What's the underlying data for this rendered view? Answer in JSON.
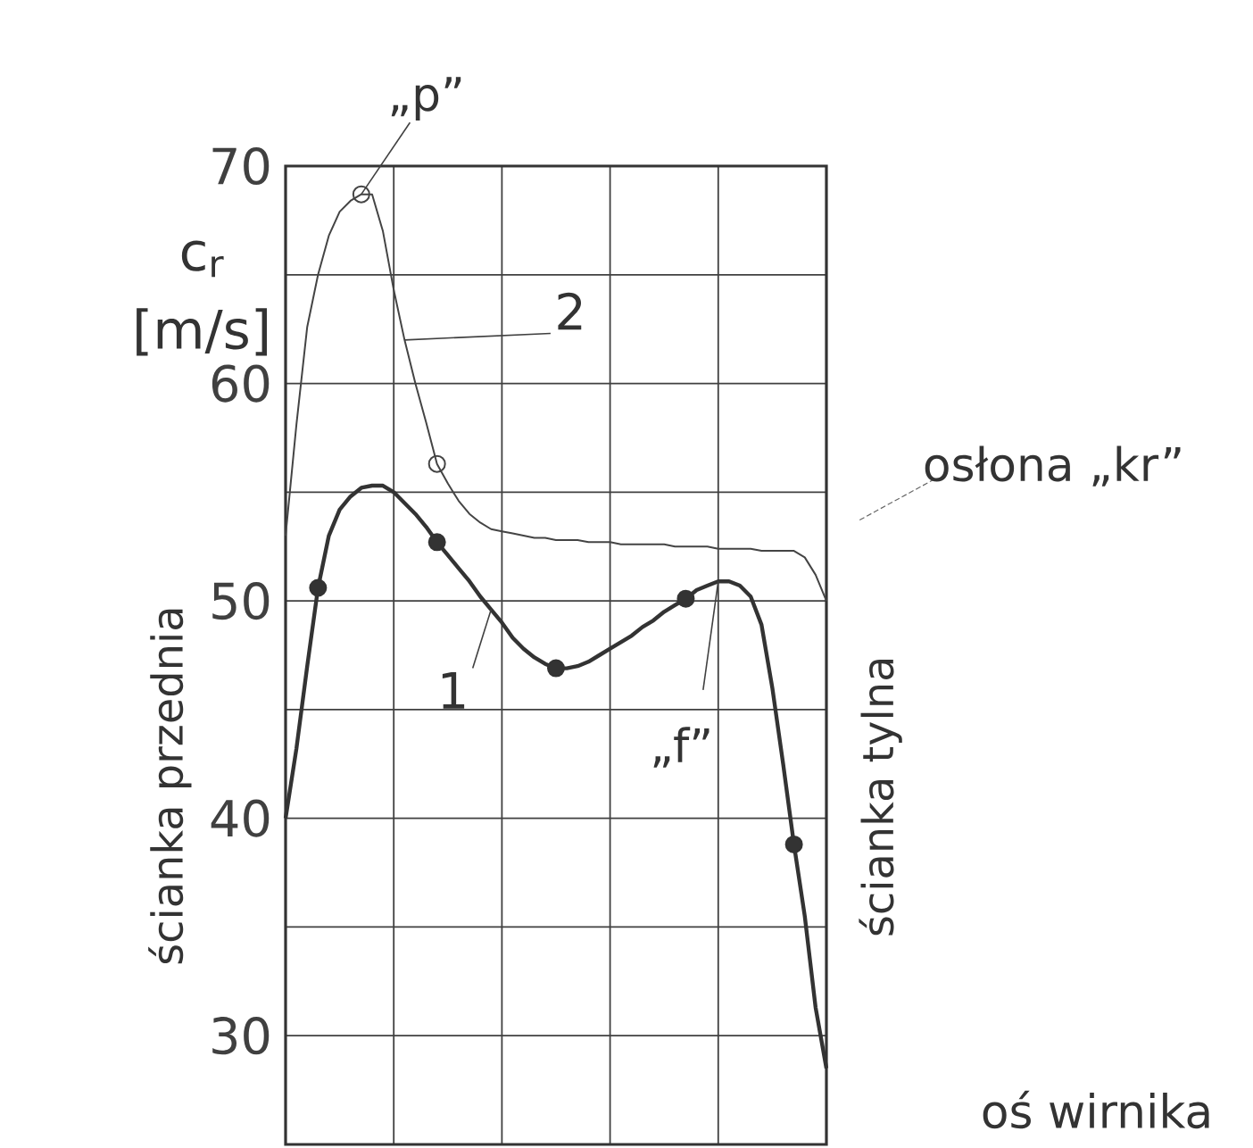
{
  "chart_data": {
    "type": "line",
    "ylabel": "c$_{r}$ [m/s]",
    "categories": [
      null,
      null,
      null,
      null,
      null,
      null,
      null,
      null,
      null,
      null,
      null,
      null,
      null,
      null,
      null,
      null,
      null,
      null,
      null,
      null,
      null,
      null,
      null,
      null,
      null,
      null,
      null,
      null,
      null,
      null,
      null,
      null,
      null,
      null,
      null,
      null,
      null,
      null,
      null,
      null,
      null,
      null,
      null,
      null,
      null,
      null,
      null,
      null,
      null,
      null,
      null
    ],
    "ylim": [
      25,
      70
    ],
    "yticks": [
      30,
      {
        "value": 35,
        "label": null
      },
      40,
      {
        "value": 45,
        "label": null
      },
      50,
      {
        "value": 55,
        "label": null
      },
      60,
      {
        "value": 65,
        "label": null
      },
      70
    ],
    "grid": true,
    "tick_labels": "y",
    "series": [
      {
        "name": "1",
        "color": "#333333",
        "values": [
          40.0,
          43.2,
          47.0,
          50.6,
          53.0,
          54.2,
          54.8,
          55.2,
          55.3,
          55.3,
          55.0,
          54.5,
          54.0,
          53.4,
          52.7,
          52.1,
          51.5,
          50.9,
          50.2,
          49.6,
          49.0,
          48.3,
          47.8,
          47.4,
          47.1,
          46.9,
          46.9,
          47.0,
          47.2,
          47.5,
          47.8,
          48.1,
          48.4,
          48.8,
          49.1,
          49.5,
          49.8,
          50.1,
          50.5,
          50.7,
          50.9,
          50.9,
          50.7,
          50.2,
          48.9,
          46.0,
          42.5,
          38.8,
          35.5,
          31.3,
          28.5
        ]
      },
      {
        "name": "2",
        "color": "#444444",
        "values": [
          53.0,
          58.1,
          62.6,
          65.0,
          66.8,
          67.9,
          68.4,
          68.7,
          68.7,
          67.0,
          64.3,
          62.0,
          60.0,
          58.2,
          56.3,
          55.4,
          54.6,
          54.0,
          53.6,
          53.3,
          53.2,
          53.1,
          53.0,
          52.9,
          52.9,
          52.8,
          52.8,
          52.8,
          52.7,
          52.7,
          52.7,
          52.6,
          52.6,
          52.6,
          52.6,
          52.6,
          52.5,
          52.5,
          52.5,
          52.5,
          52.4,
          52.4,
          52.4,
          52.4,
          52.3,
          52.3,
          52.3,
          52.3,
          52.0,
          51.2,
          50.0
        ]
      },
      {
        "type": "scatter",
        "marker": "circle",
        "color": "#333333",
        "values": [
          null,
          null,
          null,
          50.6,
          null,
          null,
          null,
          null,
          null,
          null,
          null,
          null,
          null,
          null,
          52.7,
          null,
          null,
          null,
          null,
          null,
          null,
          null,
          null,
          null,
          null,
          46.9,
          null,
          null,
          null,
          null,
          null,
          null,
          null,
          null,
          null,
          null,
          null,
          50.1,
          null,
          null,
          null,
          null,
          null,
          null,
          null,
          null,
          null,
          38.8,
          null,
          null,
          null
        ]
      },
      {
        "type": "scatter",
        "marker": "circle",
        "color": "#444444",
        "values": [
          null,
          null,
          null,
          null,
          null,
          null,
          null,
          68.7,
          null,
          null,
          null,
          null,
          null,
          null,
          56.3,
          null,
          null,
          null,
          null,
          null,
          null,
          null,
          null,
          null,
          null,
          null,
          null,
          null,
          null,
          null,
          null,
          null,
          null,
          null,
          null,
          null,
          null,
          null,
          null,
          null,
          null,
          null,
          null,
          null,
          null,
          null,
          null,
          null,
          null,
          null,
          null
        ]
      }
    ],
    "annotations": [
      "„p”",
      "„f”",
      "osłona „kr”",
      "ścianka przednia",
      "ścianka tylna",
      "oś wirnika"
    ]
  }
}
